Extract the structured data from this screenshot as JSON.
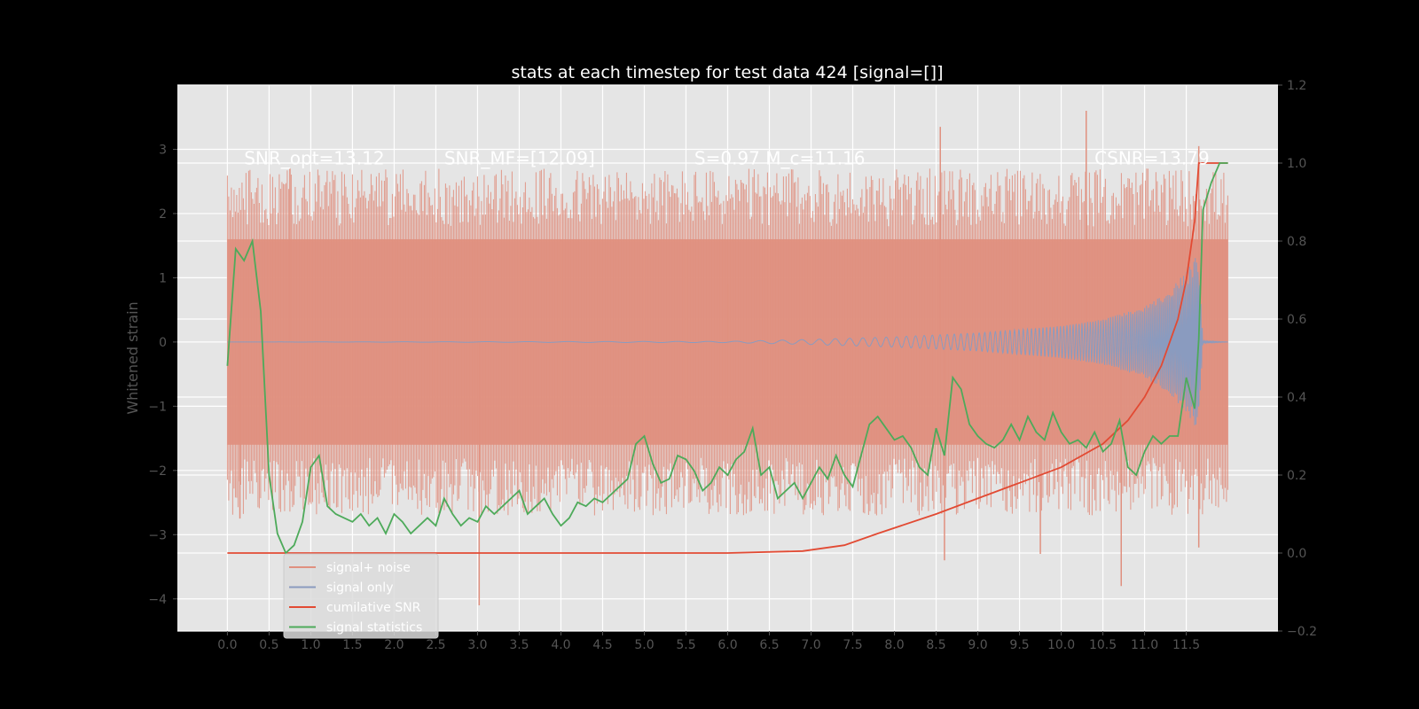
{
  "chart_data": {
    "type": "line",
    "title": "stats at each timestep for test data 424 [signal=[]]",
    "xlabel": "",
    "ylabel_left": "Whitened strain",
    "ylabel_right": "",
    "xlim": [
      -0.6,
      12.6
    ],
    "ylim_left": [
      -4.5,
      4.0
    ],
    "ylim_right": [
      -0.2,
      1.2
    ],
    "x_ticks": [
      0.0,
      0.5,
      1.0,
      1.5,
      2.0,
      2.5,
      3.0,
      3.5,
      4.0,
      4.5,
      5.0,
      5.5,
      6.0,
      6.5,
      7.0,
      7.5,
      8.0,
      8.5,
      9.0,
      9.5,
      10.0,
      10.5,
      11.0,
      11.5
    ],
    "x_tick_labels": [
      "0.0",
      "0.5",
      "1.0",
      "1.5",
      "2.0",
      "2.5",
      "3.0",
      "3.5",
      "4.0",
      "4.5",
      "5.0",
      "5.5",
      "6.0",
      "6.5",
      "7.0",
      "7.5",
      "8.0",
      "8.5",
      "9.0",
      "9.5",
      "10.0",
      "10.5",
      "11.0",
      "11.5"
    ],
    "y_left_ticks": [
      -4,
      -3,
      -2,
      -1,
      0,
      1,
      2,
      3
    ],
    "y_left_tick_labels": [
      "−4",
      "−3",
      "−2",
      "−1",
      "0",
      "1",
      "2",
      "3"
    ],
    "y_right_ticks": [
      -0.2,
      0.0,
      0.2,
      0.4,
      0.6,
      0.8,
      1.0,
      1.2
    ],
    "y_right_tick_labels": [
      "−0.2",
      "0.0",
      "0.2",
      "0.4",
      "0.6",
      "0.8",
      "1.0",
      "1.2"
    ],
    "grid": true,
    "legend_position": "lower-left",
    "colors": {
      "figure_bg": "#000000",
      "axes_bg": "#e5e5e5",
      "grid": "#ffffff",
      "tick_text": "#555555",
      "signal_noise": "#e0907f",
      "signal_only": "#8a9bbf",
      "cumulative_snr": "#e24a33",
      "signal_statistics": "#4daa5a"
    },
    "annotations": [
      {
        "text": "SNR_opt=13.12",
        "x": 0.2,
        "y": 2.85
      },
      {
        "text": "SNR_MF=[12.09]",
        "x": 2.6,
        "y": 2.85
      },
      {
        "text": "S=0.97  M_c=11.16",
        "x": 5.6,
        "y": 2.85
      },
      {
        "text": "CSNR=13.79",
        "x": 10.4,
        "y": 2.85
      }
    ],
    "signal_noise": {
      "name": "signal+ noise",
      "x_range": [
        0.0,
        12.0
      ],
      "band_upper": 1.6,
      "band_lower": -1.6,
      "notable_spikes": [
        {
          "x": 0.75,
          "y": 2.7
        },
        {
          "x": 0.15,
          "y": -2.75
        },
        {
          "x": 3.02,
          "y": -4.1
        },
        {
          "x": 6.0,
          "y": 0.9
        },
        {
          "x": 8.55,
          "y": 3.35
        },
        {
          "x": 8.6,
          "y": -3.4
        },
        {
          "x": 9.75,
          "y": -3.3
        },
        {
          "x": 10.3,
          "y": 3.6
        },
        {
          "x": 10.72,
          "y": -3.8
        },
        {
          "x": 11.65,
          "y": 3.05
        },
        {
          "x": 11.65,
          "y": -3.2
        }
      ]
    },
    "signal_only": {
      "name": "signal only",
      "x": [
        0.0,
        6.0,
        7.0,
        8.0,
        9.0,
        10.0,
        10.5,
        11.0,
        11.3,
        11.5,
        11.65,
        11.7,
        12.0
      ],
      "envelope": [
        0.0,
        0.01,
        0.04,
        0.08,
        0.14,
        0.25,
        0.35,
        0.55,
        0.8,
        1.1,
        1.4,
        0.02,
        0.0
      ]
    },
    "cumulative_snr": {
      "name": "cumilative SNR",
      "x": [
        0.0,
        6.0,
        6.9,
        7.4,
        7.8,
        8.5,
        9.0,
        9.5,
        10.0,
        10.5,
        10.8,
        11.0,
        11.2,
        11.4,
        11.5,
        11.6,
        11.65,
        11.7,
        12.0
      ],
      "y": [
        0.0,
        0.0,
        0.005,
        0.02,
        0.05,
        0.1,
        0.14,
        0.18,
        0.22,
        0.28,
        0.34,
        0.4,
        0.48,
        0.6,
        0.7,
        0.85,
        1.0,
        1.0,
        1.0
      ]
    },
    "signal_statistics": {
      "name": "signal statistics",
      "x": [
        0.0,
        0.1,
        0.2,
        0.3,
        0.4,
        0.5,
        0.6,
        0.7,
        0.8,
        0.9,
        1.0,
        1.1,
        1.2,
        1.3,
        1.4,
        1.5,
        1.6,
        1.7,
        1.8,
        1.9,
        2.0,
        2.1,
        2.2,
        2.3,
        2.4,
        2.5,
        2.6,
        2.7,
        2.8,
        2.9,
        3.0,
        3.1,
        3.2,
        3.3,
        3.4,
        3.5,
        3.6,
        3.7,
        3.8,
        3.9,
        4.0,
        4.1,
        4.2,
        4.3,
        4.4,
        4.5,
        4.6,
        4.7,
        4.8,
        4.9,
        5.0,
        5.1,
        5.2,
        5.3,
        5.4,
        5.5,
        5.6,
        5.7,
        5.8,
        5.9,
        6.0,
        6.1,
        6.2,
        6.3,
        6.4,
        6.5,
        6.6,
        6.7,
        6.8,
        6.9,
        7.0,
        7.1,
        7.2,
        7.3,
        7.4,
        7.5,
        7.6,
        7.7,
        7.8,
        7.9,
        8.0,
        8.1,
        8.2,
        8.3,
        8.4,
        8.5,
        8.6,
        8.7,
        8.8,
        8.9,
        9.0,
        9.1,
        9.2,
        9.3,
        9.4,
        9.5,
        9.6,
        9.7,
        9.8,
        9.9,
        10.0,
        10.1,
        10.2,
        10.3,
        10.4,
        10.5,
        10.6,
        10.7,
        10.8,
        10.9,
        11.0,
        11.1,
        11.2,
        11.3,
        11.4,
        11.5,
        11.6,
        11.65,
        11.7,
        11.8,
        11.9,
        12.0
      ],
      "y": [
        0.48,
        0.78,
        0.75,
        0.8,
        0.62,
        0.2,
        0.05,
        0.0,
        0.02,
        0.08,
        0.22,
        0.25,
        0.12,
        0.1,
        0.09,
        0.08,
        0.1,
        0.07,
        0.09,
        0.05,
        0.1,
        0.08,
        0.05,
        0.07,
        0.09,
        0.07,
        0.14,
        0.1,
        0.07,
        0.09,
        0.08,
        0.12,
        0.1,
        0.12,
        0.14,
        0.16,
        0.1,
        0.12,
        0.14,
        0.1,
        0.07,
        0.09,
        0.13,
        0.12,
        0.14,
        0.13,
        0.15,
        0.17,
        0.19,
        0.28,
        0.3,
        0.23,
        0.18,
        0.19,
        0.25,
        0.24,
        0.21,
        0.16,
        0.18,
        0.22,
        0.2,
        0.24,
        0.26,
        0.32,
        0.2,
        0.22,
        0.14,
        0.16,
        0.18,
        0.14,
        0.18,
        0.22,
        0.19,
        0.25,
        0.2,
        0.17,
        0.25,
        0.33,
        0.35,
        0.32,
        0.29,
        0.3,
        0.27,
        0.22,
        0.2,
        0.32,
        0.25,
        0.45,
        0.42,
        0.33,
        0.3,
        0.28,
        0.27,
        0.29,
        0.33,
        0.29,
        0.35,
        0.31,
        0.29,
        0.36,
        0.31,
        0.28,
        0.29,
        0.27,
        0.31,
        0.26,
        0.28,
        0.34,
        0.22,
        0.2,
        0.26,
        0.3,
        0.28,
        0.3,
        0.3,
        0.45,
        0.37,
        0.55,
        0.88,
        0.95,
        1.0,
        1.0
      ]
    }
  }
}
